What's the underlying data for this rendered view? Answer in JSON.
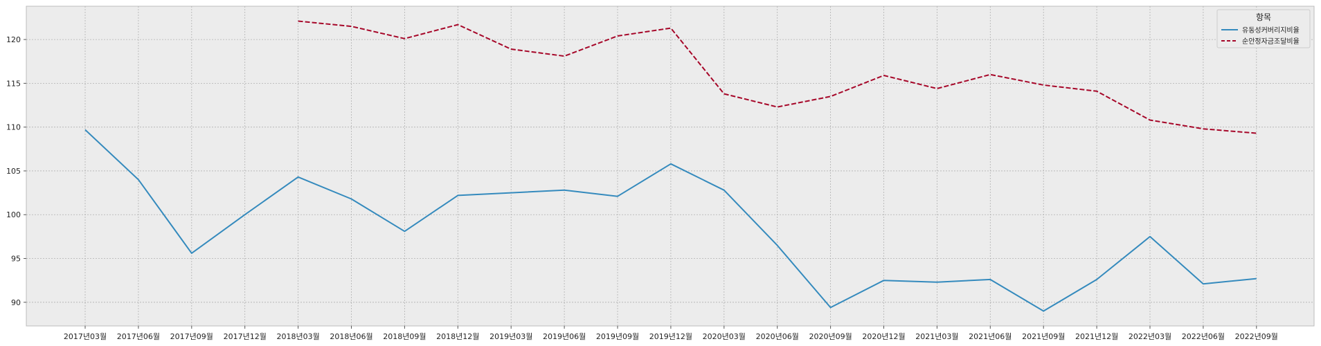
{
  "chart_data": {
    "type": "line",
    "categories": [
      "2017년03월",
      "2017년06월",
      "2017년09월",
      "2017년12월",
      "2018년03월",
      "2018년06월",
      "2018년09월",
      "2018년12월",
      "2019년03월",
      "2019년06월",
      "2019년09월",
      "2019년12월",
      "2020년03월",
      "2020년06월",
      "2020년09월",
      "2020년12월",
      "2021년03월",
      "2021년06월",
      "2021년09월",
      "2021년12월",
      "2022년03월",
      "2022년06월",
      "2022년09월"
    ],
    "series": [
      {
        "name": "유동성커버리지비율",
        "color": "#348abd",
        "dash": "solid",
        "values": [
          109.7,
          104.0,
          95.6,
          100.0,
          104.3,
          101.8,
          98.1,
          102.2,
          102.5,
          102.8,
          102.1,
          105.8,
          102.8,
          96.5,
          89.4,
          92.5,
          92.3,
          92.6,
          89.0,
          92.6,
          97.5,
          92.1,
          92.7
        ]
      },
      {
        "name": "순안정자금조달비율",
        "color": "#a60628",
        "dash": "dashed",
        "values": [
          null,
          null,
          null,
          null,
          122.1,
          121.5,
          120.1,
          121.7,
          118.9,
          118.1,
          120.4,
          121.3,
          113.8,
          112.3,
          113.5,
          115.9,
          114.4,
          116.0,
          114.8,
          114.1,
          110.8,
          109.8,
          109.3
        ]
      }
    ],
    "yticks": [
      90,
      95,
      100,
      105,
      110,
      115,
      120
    ],
    "ylim": [
      87.3,
      123.8
    ],
    "legend_title": "항목",
    "legend_position": "top-right",
    "grid": true,
    "title": "",
    "xlabel": "",
    "ylabel": ""
  }
}
